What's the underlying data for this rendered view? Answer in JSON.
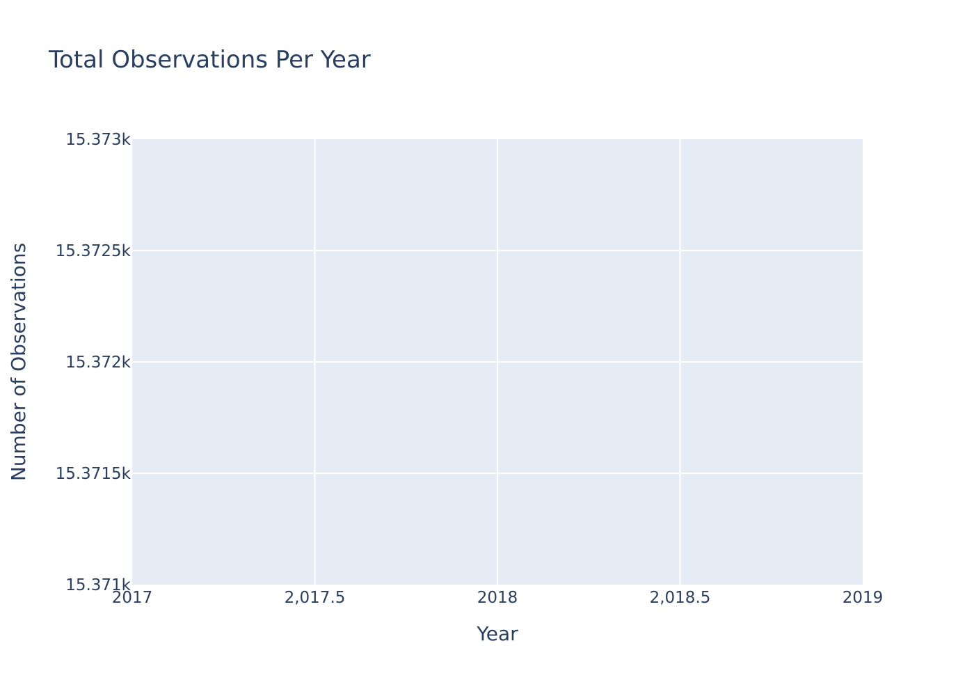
{
  "chart_data": {
    "type": "line",
    "title": "Total Observations Per Year",
    "xlabel": "Year",
    "ylabel": "Number of Observations",
    "xlim": [
      2017,
      2019
    ],
    "ylim": [
      15371,
      15373
    ],
    "x_ticks": [
      {
        "value": 2017,
        "label": "2017"
      },
      {
        "value": 2017.5,
        "label": "2,017.5"
      },
      {
        "value": 2018,
        "label": "2018"
      },
      {
        "value": 2018.5,
        "label": "2,018.5"
      },
      {
        "value": 2019,
        "label": "2019"
      }
    ],
    "y_ticks": [
      {
        "value": 15371,
        "label": "15.371k"
      },
      {
        "value": 15371.5,
        "label": "15.3715k"
      },
      {
        "value": 15372,
        "label": "15.372k"
      },
      {
        "value": 15372.5,
        "label": "15.3725k"
      },
      {
        "value": 15373,
        "label": "15.373k"
      }
    ],
    "grid": true,
    "series": [],
    "colors": {
      "plot_background": "#e5ecf6",
      "grid": "#ffffff",
      "text": "#2a3f5f"
    }
  }
}
